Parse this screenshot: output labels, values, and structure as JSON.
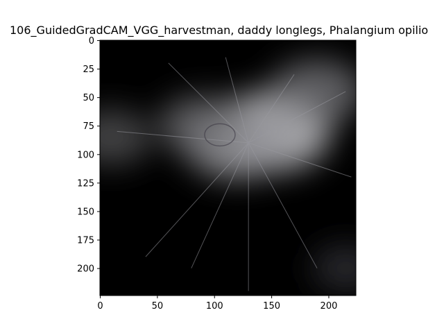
{
  "chart_data": {
    "type": "heatmap",
    "title": "106_GuidedGradCAM_VGG_harvestman, daddy longlegs, Phalangium opilio",
    "xlabel": "",
    "ylabel": "",
    "xlim": [
      0,
      224
    ],
    "ylim": [
      224,
      0
    ],
    "x_ticks": [
      0,
      50,
      100,
      150,
      200
    ],
    "y_ticks": [
      0,
      25,
      50,
      75,
      100,
      125,
      150,
      175,
      200
    ],
    "grid": false,
    "colormap": "grayscale",
    "image_description_tag": "guided-gradcam-saliency-overlay",
    "hotspots": [
      {
        "x": 150,
        "y": 80,
        "intensity": 0.75
      },
      {
        "x": 120,
        "y": 90,
        "intensity": 0.6
      },
      {
        "x": 190,
        "y": 45,
        "intensity": 0.45
      },
      {
        "x": 10,
        "y": 85,
        "intensity": 0.3
      },
      {
        "x": 90,
        "y": 75,
        "intensity": 0.4
      },
      {
        "x": 215,
        "y": 200,
        "intensity": 0.15
      }
    ]
  },
  "colors": {
    "background": "#ffffff",
    "image_dark": "#000000",
    "image_light": "#cfcfd2"
  }
}
